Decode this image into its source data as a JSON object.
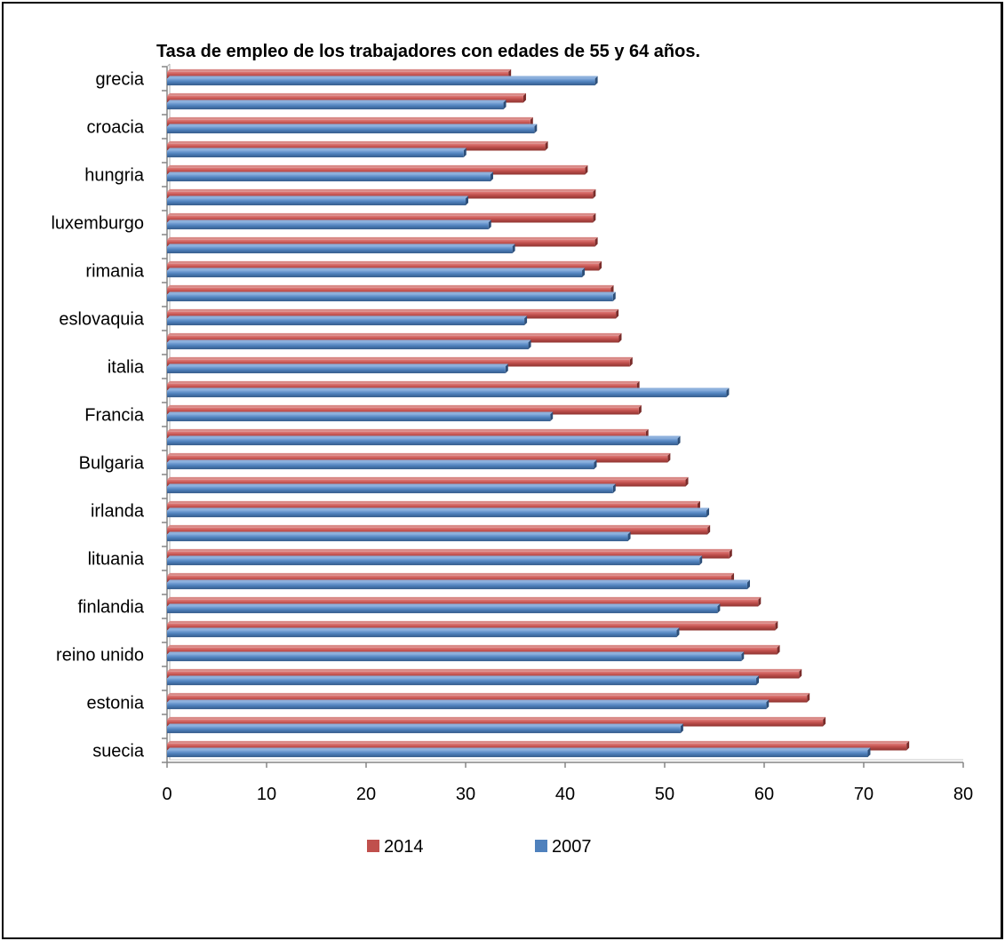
{
  "chart_data": {
    "type": "bar",
    "orientation": "horizontal",
    "title": "Tasa de empleo de los trabajadores con edades de 55 y 64 años.",
    "xlabel": "",
    "ylabel": "",
    "xlim": [
      0,
      80
    ],
    "xticks": [
      "0",
      "10",
      "20",
      "30",
      "40",
      "50",
      "60",
      "70",
      "80"
    ],
    "grid": false,
    "legend_position": "bottom",
    "categories": [
      "grecia",
      "",
      "croacia",
      "",
      "hungria",
      "",
      "luxemburgo",
      "",
      "rimania",
      "",
      "eslovaquia",
      "",
      "italia",
      "",
      "Francia",
      "",
      "Bulgaria",
      "",
      "irlanda",
      "",
      "lituania",
      "",
      "finlandia",
      "",
      "reino unido",
      "",
      "estonia",
      "",
      "suecia"
    ],
    "series": [
      {
        "name": "2014",
        "color": "#C0504D",
        "values": [
          34.3,
          35.8,
          36.5,
          38.0,
          42.0,
          42.8,
          42.8,
          43.0,
          43.4,
          44.6,
          45.1,
          45.4,
          46.5,
          47.2,
          47.4,
          48.1,
          50.3,
          52.1,
          53.3,
          54.3,
          56.5,
          56.7,
          59.4,
          61.1,
          61.3,
          63.5,
          64.3,
          65.9,
          74.3
        ]
      },
      {
        "name": "2007",
        "color": "#4F81BD",
        "values": [
          43.0,
          33.8,
          36.9,
          29.8,
          32.5,
          30.0,
          32.3,
          34.7,
          41.7,
          44.8,
          35.9,
          36.3,
          34.0,
          56.2,
          38.5,
          51.3,
          42.9,
          44.8,
          54.2,
          46.3,
          53.5,
          58.3,
          55.3,
          51.2,
          57.7,
          59.2,
          60.2,
          51.6,
          70.4
        ]
      }
    ]
  }
}
